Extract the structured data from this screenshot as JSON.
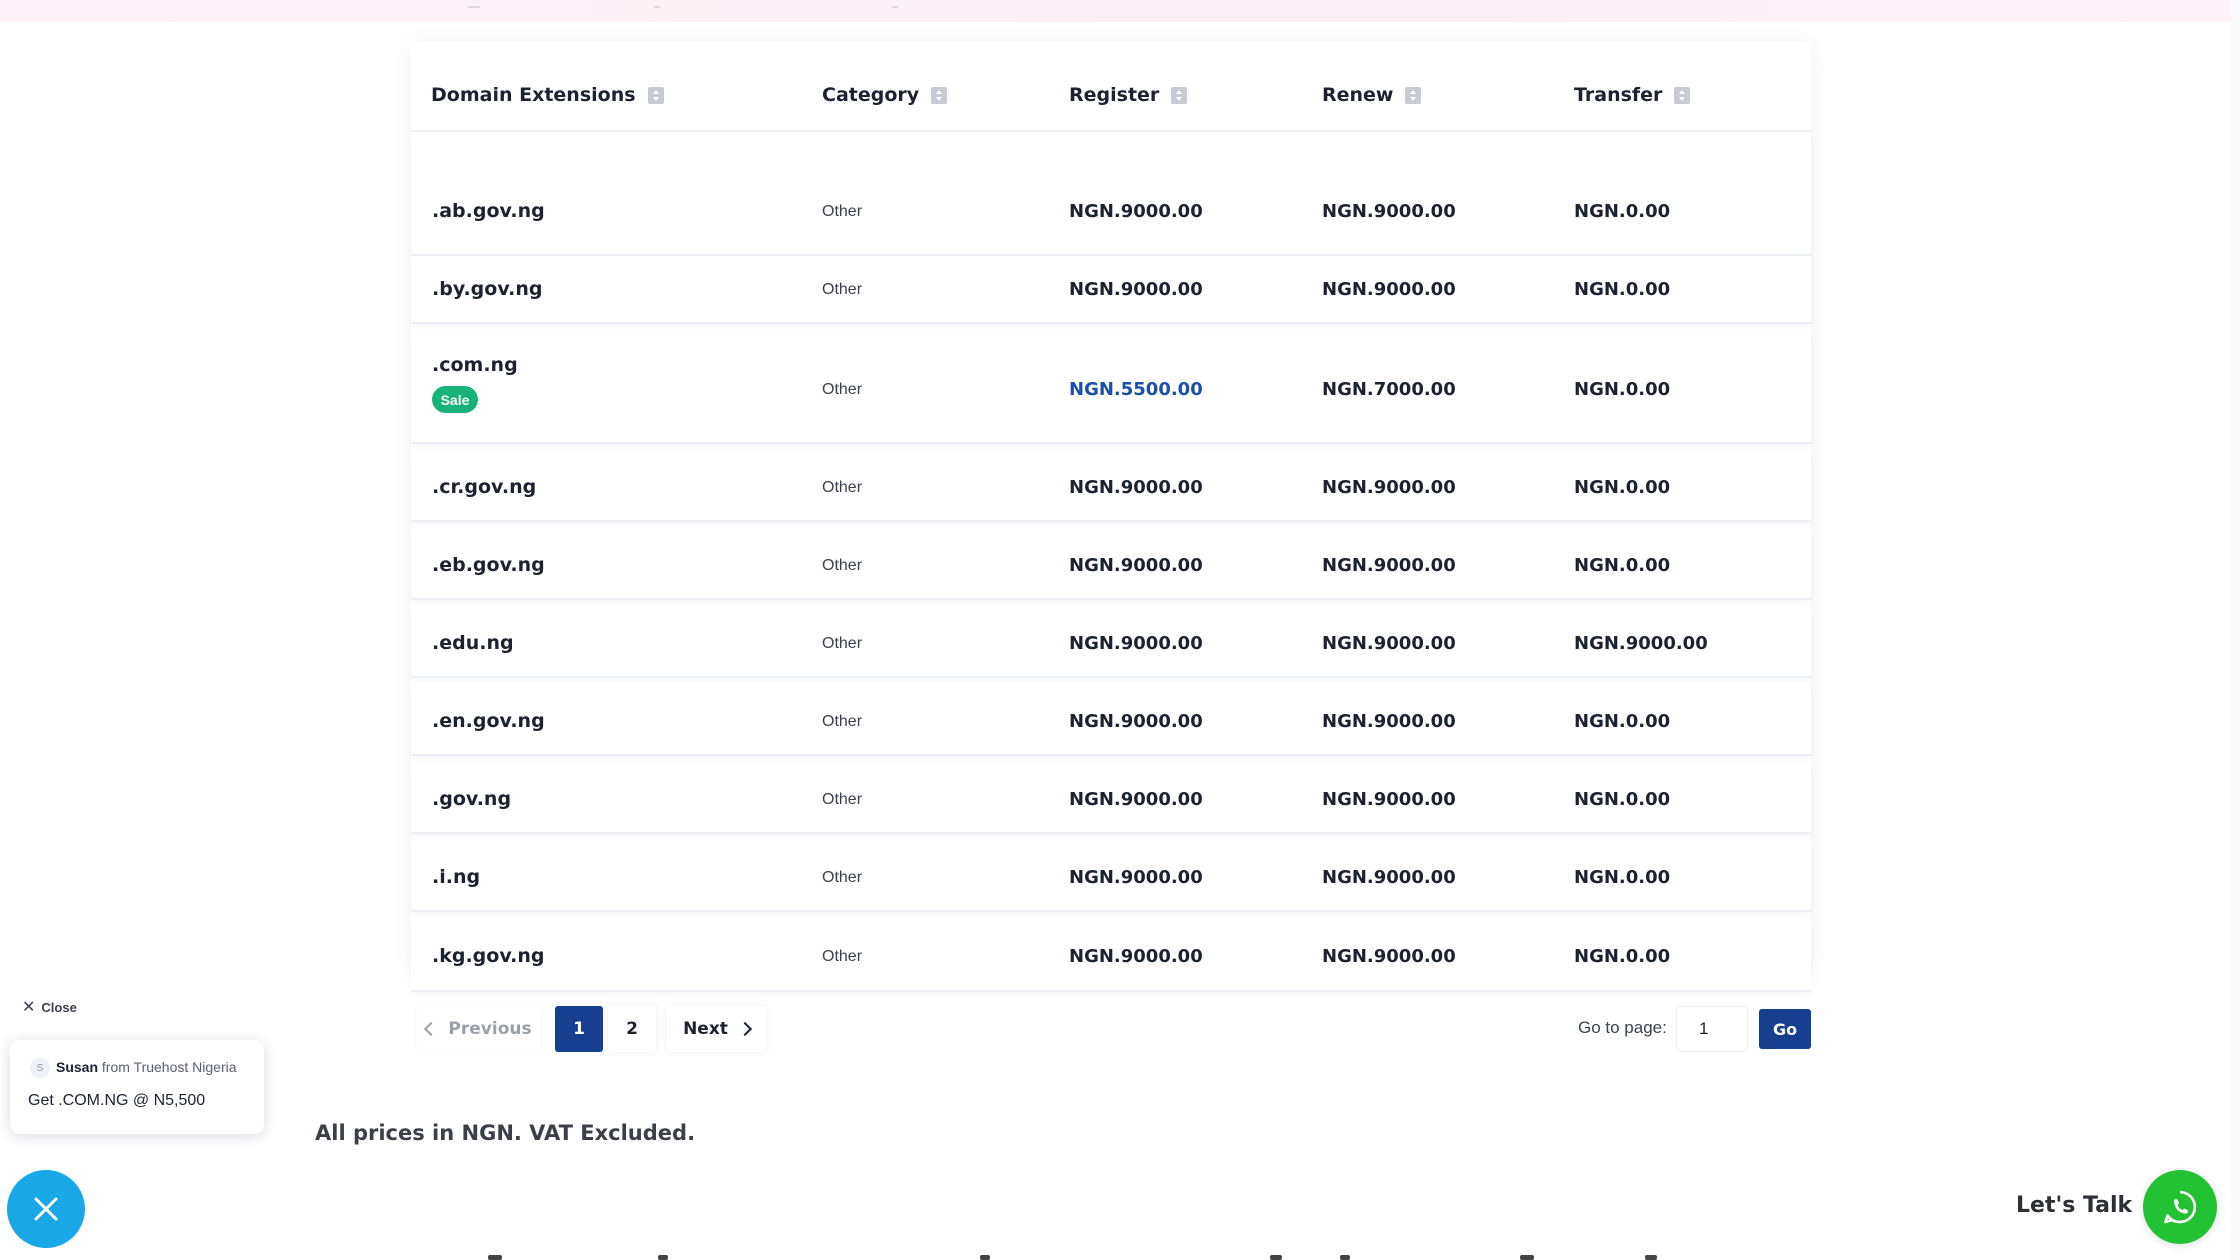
{
  "table": {
    "headers": {
      "domain": "Domain Extensions",
      "category": "Category",
      "register": "Register",
      "renew": "Renew",
      "transfer": "Transfer"
    },
    "rows": [
      {
        "ext": ".ab.gov.ng",
        "category": "Other",
        "register": "NGN.9000.00",
        "renew": "NGN.9000.00",
        "transfer": "NGN.0.00"
      },
      {
        "ext": ".by.gov.ng",
        "category": "Other",
        "register": "NGN.9000.00",
        "renew": "NGN.9000.00",
        "transfer": "NGN.0.00"
      },
      {
        "ext": ".com.ng",
        "badge": "Sale",
        "category": "Other",
        "register": "NGN.5500.00",
        "renew": "NGN.7000.00",
        "transfer": "NGN.0.00"
      },
      {
        "ext": ".cr.gov.ng",
        "category": "Other",
        "register": "NGN.9000.00",
        "renew": "NGN.9000.00",
        "transfer": "NGN.0.00"
      },
      {
        "ext": ".eb.gov.ng",
        "category": "Other",
        "register": "NGN.9000.00",
        "renew": "NGN.9000.00",
        "transfer": "NGN.0.00"
      },
      {
        "ext": ".edu.ng",
        "category": "Other",
        "register": "NGN.9000.00",
        "renew": "NGN.9000.00",
        "transfer": "NGN.9000.00"
      },
      {
        "ext": ".en.gov.ng",
        "category": "Other",
        "register": "NGN.9000.00",
        "renew": "NGN.9000.00",
        "transfer": "NGN.0.00"
      },
      {
        "ext": ".gov.ng",
        "category": "Other",
        "register": "NGN.9000.00",
        "renew": "NGN.9000.00",
        "transfer": "NGN.0.00"
      },
      {
        "ext": ".i.ng",
        "category": "Other",
        "register": "NGN.9000.00",
        "renew": "NGN.9000.00",
        "transfer": "NGN.0.00"
      },
      {
        "ext": ".kg.gov.ng",
        "category": "Other",
        "register": "NGN.9000.00",
        "renew": "NGN.9000.00",
        "transfer": "NGN.0.00"
      }
    ]
  },
  "pagination": {
    "previous": "Previous",
    "pages": [
      "1",
      "2"
    ],
    "active_page": "1",
    "next": "Next",
    "goto_label": "Go to page:",
    "goto_value": "1",
    "go": "Go"
  },
  "note": "All prices in NGN. VAT Excluded.",
  "notification": {
    "close": "Close",
    "avatar_letter": "S",
    "name": "Susan",
    "from": "from Truehost Nigeria",
    "message": "Get .COM.NG @ N5,500"
  },
  "chat": {
    "lets_talk": "Let's Talk"
  },
  "colors": {
    "primary": "#173f8f",
    "sale_badge": "#16b37a",
    "sale_price": "#1b4fa8",
    "fab": "#1aa7e8",
    "whatsapp": "#22c234"
  },
  "icons": {
    "sort": "sort-icon",
    "close": "close-icon",
    "whatsapp": "whatsapp-icon"
  }
}
